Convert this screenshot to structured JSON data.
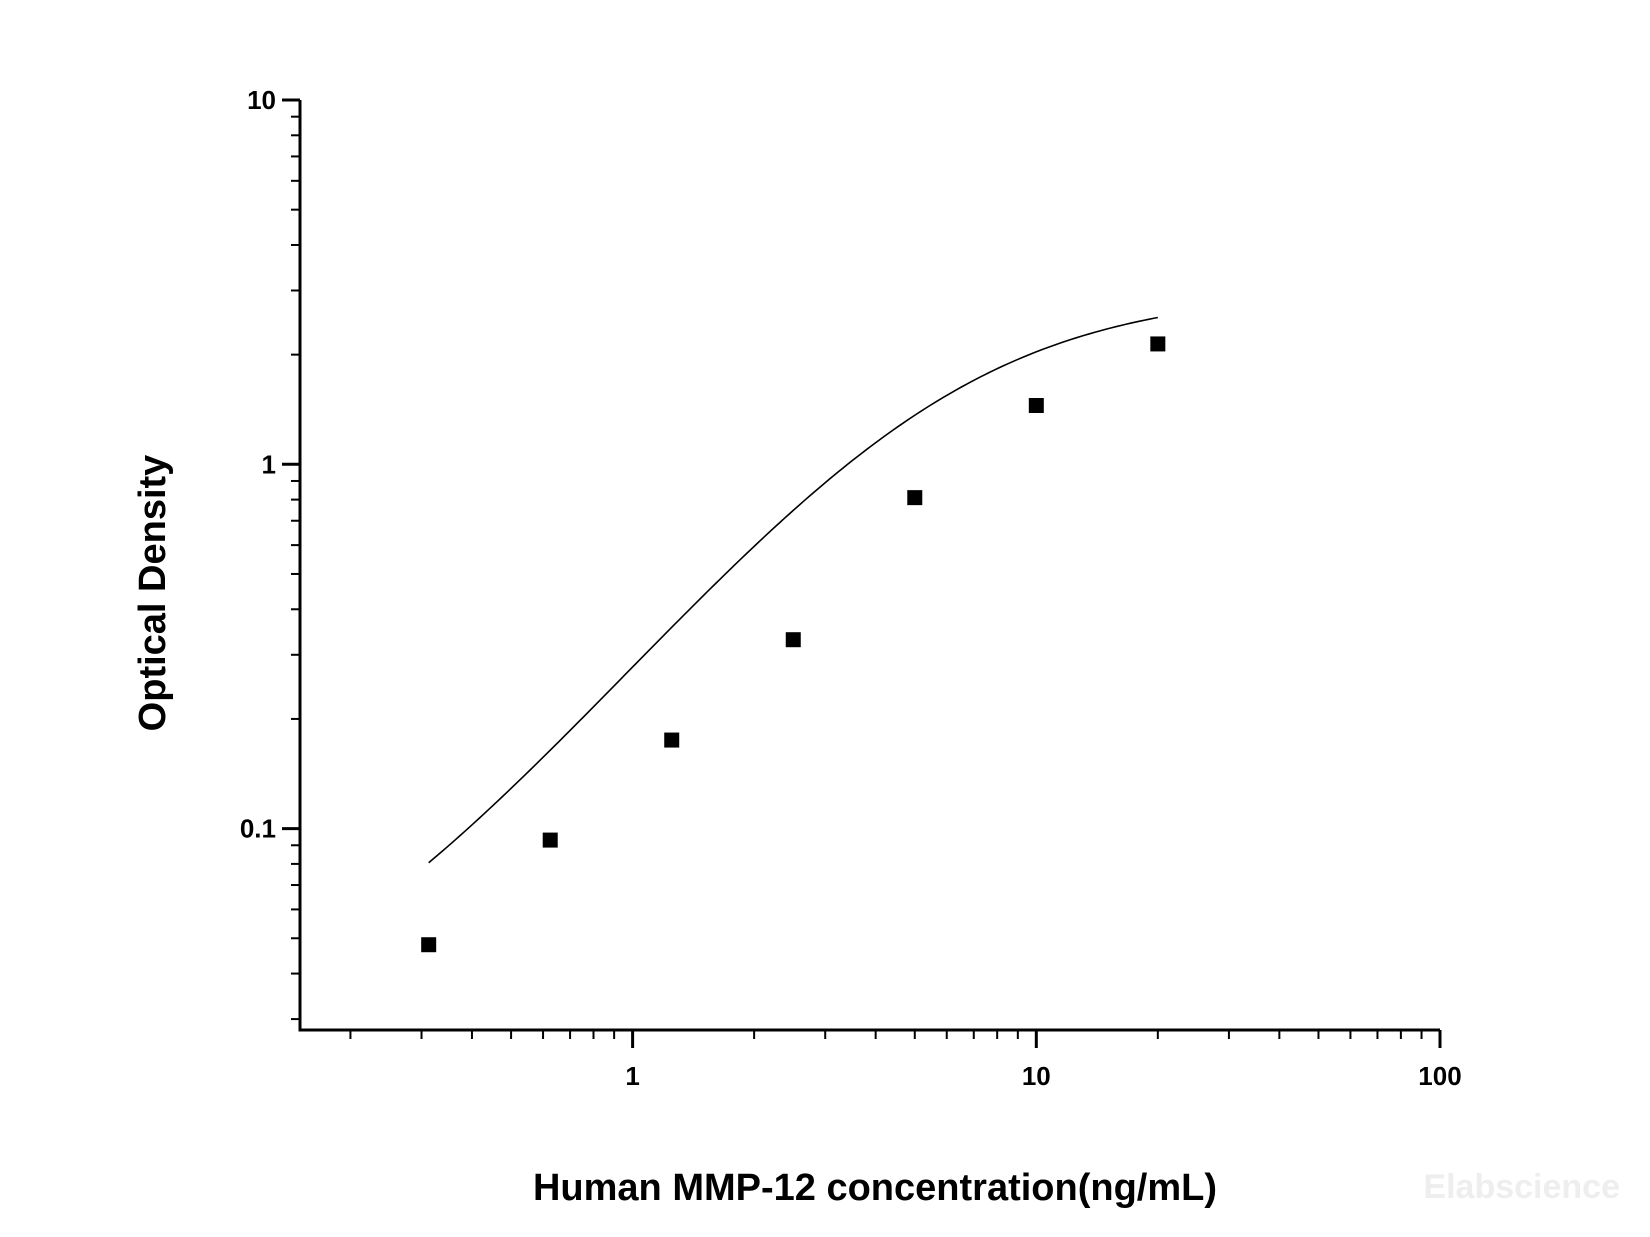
{
  "chart_data": {
    "type": "scatter",
    "title": "",
    "xlabel": "Human MMP-12 concentration(ng/mL)",
    "ylabel": "Optical Density",
    "x_scale": "log",
    "y_scale": "log",
    "xlim": [
      0.15,
      100
    ],
    "ylim": [
      0.028,
      10
    ],
    "x_ticks": [
      {
        "value": 1,
        "label": "1"
      },
      {
        "value": 10,
        "label": "10"
      },
      {
        "value": 100,
        "label": "100"
      }
    ],
    "y_ticks": [
      {
        "value": 0.1,
        "label": "0.1"
      },
      {
        "value": 1,
        "label": "1"
      },
      {
        "value": 10,
        "label": "10"
      }
    ],
    "grid": false,
    "legend": "none",
    "series": [
      {
        "marker": "square",
        "color": "#000000",
        "points": [
          {
            "x": 0.3125,
            "y": 0.048
          },
          {
            "x": 0.625,
            "y": 0.093
          },
          {
            "x": 1.25,
            "y": 0.175
          },
          {
            "x": 2.5,
            "y": 0.33
          },
          {
            "x": 5,
            "y": 0.81
          },
          {
            "x": 10,
            "y": 1.45
          },
          {
            "x": 20,
            "y": 2.14
          }
        ]
      }
    ],
    "fit_curve": {
      "model": "4PL",
      "A": 0.024,
      "B": 1.35,
      "C": 5.8,
      "D": 3.0,
      "x_range": [
        0.3125,
        20
      ],
      "color": "#000000"
    }
  },
  "watermark": "Elabscience"
}
